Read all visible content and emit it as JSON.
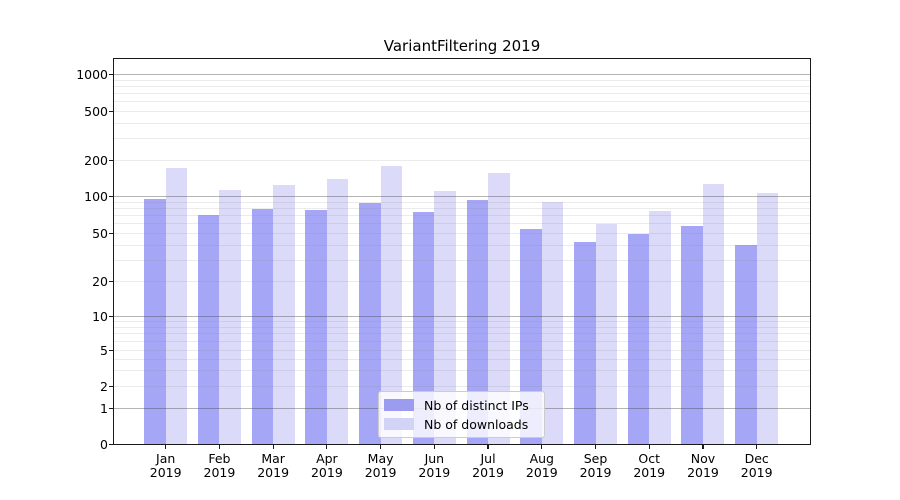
{
  "chart_data": {
    "type": "bar",
    "title": "VariantFiltering 2019",
    "categories": [
      "Jan",
      "Feb",
      "Mar",
      "Apr",
      "May",
      "Jun",
      "Jul",
      "Aug",
      "Sep",
      "Oct",
      "Nov",
      "Dec"
    ],
    "category_year": "2019",
    "series": [
      {
        "name": "Nb of distinct IPs",
        "color": "#a6a6f6",
        "legend_color": "#9b9cf0",
        "values": [
          95,
          70,
          79,
          77,
          87,
          74,
          92,
          54,
          42,
          49,
          57,
          40
        ]
      },
      {
        "name": "Nb of downloads",
        "color": "#dbdbf9",
        "legend_color": "#d2d3f7",
        "values": [
          170,
          112,
          124,
          138,
          179,
          111,
          155,
          90,
          59,
          76,
          127,
          106
        ]
      }
    ],
    "y_axis": {
      "scale": "symlog",
      "tick_values": [
        1000,
        500,
        200,
        100,
        50,
        20,
        10,
        5,
        2,
        1,
        0
      ],
      "tick_labels": [
        "1000",
        "500",
        "200",
        "100",
        "50",
        "20",
        "10",
        "5",
        "2",
        "1",
        "0"
      ],
      "major_gridline_values": [
        1,
        10,
        100,
        1000
      ],
      "ylim": [
        0,
        1300
      ],
      "grid": true
    },
    "xlabel": "",
    "ylabel": "",
    "legend_position": "lower-center-inside"
  }
}
